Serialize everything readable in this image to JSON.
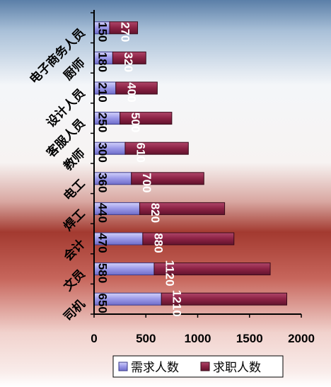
{
  "chart_data": {
    "type": "bar",
    "orientation": "horizontal",
    "stacked": true,
    "categories": [
      "电子商务人员",
      "厨师",
      "设计人员",
      "客服人员",
      "教师",
      "电工",
      "焊工",
      "会计",
      "文员",
      "司机"
    ],
    "category_axis_labels": [
      "电子商务人员",
      "厨师",
      "设计人员",
      "客服人员",
      "教师",
      "电工",
      "焊工",
      "会计",
      "文员",
      "司机"
    ],
    "series": [
      {
        "name": "需求人数",
        "values": [
          150,
          180,
          210,
          250,
          300,
          360,
          440,
          470,
          580,
          650
        ]
      },
      {
        "name": "求职人数",
        "values": [
          270,
          320,
          400,
          500,
          610,
          700,
          820,
          880,
          1120,
          1210
        ]
      }
    ],
    "xlim": [
      0,
      2000
    ],
    "x_ticks": [
      "0",
      "500",
      "1000",
      "1500",
      "2000"
    ],
    "legend": {
      "placement": "bottom",
      "entries": [
        "需求人数",
        "求职人数"
      ]
    },
    "grid": false,
    "colors": {
      "demand_fill": "#9a98e8",
      "demand_edge": "#3a3a8a",
      "supply_fill": "#8b2244",
      "supply_edge": "#3a0a1a",
      "value_label_on_demand": "#000000",
      "value_label_on_supply": "#ffffff"
    }
  }
}
